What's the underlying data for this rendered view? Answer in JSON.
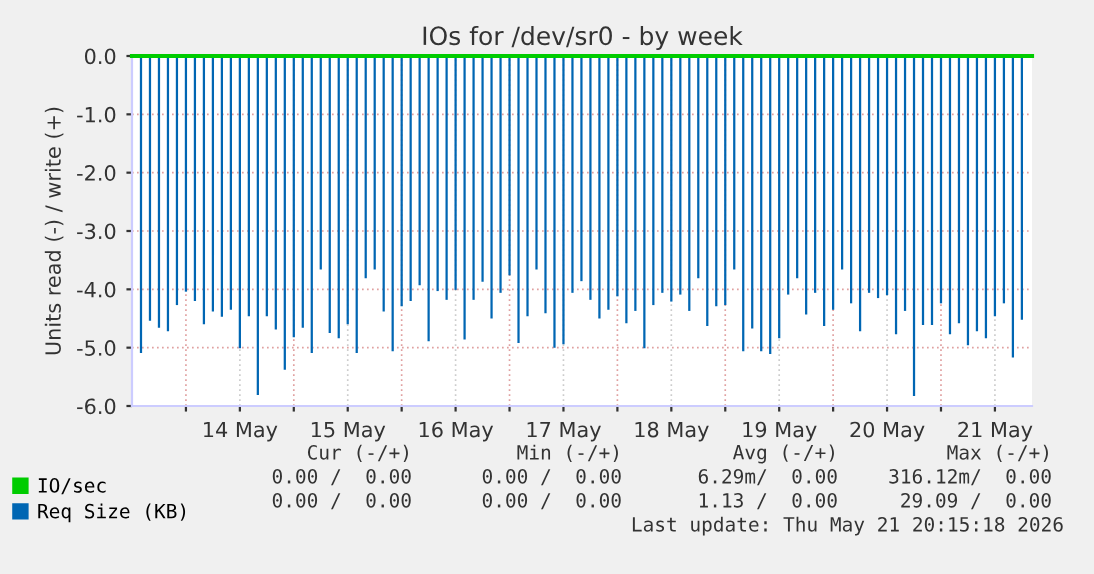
{
  "chart_data": {
    "type": "bar",
    "title": "IOs for /dev/sr0 - by week",
    "ylabel": "Units read (-) / write (+)",
    "series": [
      {
        "name": "IO/sec",
        "color": "#00cc00",
        "type": "line",
        "x": [
          "2026-05-13T12:00",
          "2026-05-21T20:15"
        ],
        "values": [
          0,
          0
        ]
      },
      {
        "name": "Req Size (KB)",
        "color": "#0066b3",
        "x": [
          "2026-05-13T14:00",
          "2026-05-13T16:00",
          "2026-05-13T18:00",
          "2026-05-13T20:00",
          "2026-05-13T22:00",
          "2026-05-14T00:00",
          "2026-05-14T02:00",
          "2026-05-14T04:00",
          "2026-05-14T06:00",
          "2026-05-14T08:00",
          "2026-05-14T10:00",
          "2026-05-14T12:00",
          "2026-05-14T14:00",
          "2026-05-14T16:00",
          "2026-05-14T18:00",
          "2026-05-14T20:00",
          "2026-05-14T22:00",
          "2026-05-15T00:00",
          "2026-05-15T02:00",
          "2026-05-15T04:00",
          "2026-05-15T06:00",
          "2026-05-15T08:00",
          "2026-05-15T10:00",
          "2026-05-15T12:00",
          "2026-05-15T14:00",
          "2026-05-15T16:00",
          "2026-05-15T18:00",
          "2026-05-15T20:00",
          "2026-05-15T22:00",
          "2026-05-16T00:00",
          "2026-05-16T02:00",
          "2026-05-16T04:00",
          "2026-05-16T06:00",
          "2026-05-16T08:00",
          "2026-05-16T10:00",
          "2026-05-16T12:00",
          "2026-05-16T14:00",
          "2026-05-16T16:00",
          "2026-05-16T18:00",
          "2026-05-16T20:00",
          "2026-05-16T22:00",
          "2026-05-17T00:00",
          "2026-05-17T02:00",
          "2026-05-17T04:00",
          "2026-05-17T06:00",
          "2026-05-17T08:00",
          "2026-05-17T10:00",
          "2026-05-17T12:00",
          "2026-05-17T14:00",
          "2026-05-17T16:00",
          "2026-05-17T18:00",
          "2026-05-17T20:00",
          "2026-05-17T22:00",
          "2026-05-18T00:00",
          "2026-05-18T02:00",
          "2026-05-18T04:00",
          "2026-05-18T06:00",
          "2026-05-18T08:00",
          "2026-05-18T10:00",
          "2026-05-18T12:00",
          "2026-05-18T14:00",
          "2026-05-18T16:00",
          "2026-05-18T18:00",
          "2026-05-18T20:00",
          "2026-05-18T22:00",
          "2026-05-19T00:00",
          "2026-05-19T02:00",
          "2026-05-19T04:00",
          "2026-05-19T06:00",
          "2026-05-19T08:00",
          "2026-05-19T10:00",
          "2026-05-19T12:00",
          "2026-05-19T14:00",
          "2026-05-19T16:00",
          "2026-05-19T18:00",
          "2026-05-19T20:00",
          "2026-05-19T22:00",
          "2026-05-20T00:00",
          "2026-05-20T02:00",
          "2026-05-20T04:00",
          "2026-05-20T06:00",
          "2026-05-20T08:00",
          "2026-05-20T10:00",
          "2026-05-20T12:00",
          "2026-05-20T14:00",
          "2026-05-20T16:00",
          "2026-05-20T18:00",
          "2026-05-20T20:00",
          "2026-05-20T22:00",
          "2026-05-21T00:00",
          "2026-05-21T02:00",
          "2026-05-21T04:00",
          "2026-05-21T06:00",
          "2026-05-21T08:00",
          "2026-05-21T10:00",
          "2026-05-21T12:00",
          "2026-05-21T14:00",
          "2026-05-21T16:00",
          "2026-05-21T18:00"
        ],
        "values": [
          -5.09,
          -4.54,
          -4.66,
          -4.72,
          -4.27,
          -4.04,
          -4.2,
          -4.6,
          -4.38,
          -4.47,
          -4.35,
          -5.01,
          -4.46,
          -5.81,
          -4.46,
          -4.69,
          -5.38,
          -4.82,
          -4.66,
          -5.09,
          -3.66,
          -4.75,
          -4.84,
          -4.6,
          -5.09,
          -3.81,
          -3.66,
          -4.38,
          -5.06,
          -4.29,
          -4.2,
          -3.93,
          -4.89,
          -4.03,
          -4.18,
          -4.01,
          -4.86,
          -4.18,
          -3.87,
          -4.5,
          -4.06,
          -3.76,
          -4.92,
          -4.46,
          -3.66,
          -4.41,
          -5.0,
          -4.94,
          -4.06,
          -3.86,
          -4.18,
          -4.5,
          -4.35,
          -4.12,
          -4.58,
          -4.37,
          -5.01,
          -4.27,
          -4.06,
          -4.21,
          -4.09,
          -4.37,
          -3.81,
          -4.63,
          -4.29,
          -4.27,
          -3.66,
          -5.06,
          -4.67,
          -5.06,
          -5.11,
          -4.84,
          -4.09,
          -3.81,
          -4.43,
          -4.06,
          -4.63,
          -4.35,
          -3.66,
          -4.24,
          -4.72,
          -4.06,
          -4.15,
          -4.1,
          -4.77,
          -4.37,
          -5.83,
          -4.61,
          -4.61,
          -4.24,
          -4.77,
          -4.58,
          -4.96,
          -4.72,
          -4.84,
          -4.46,
          -4.24,
          -5.17,
          -4.52
        ]
      }
    ],
    "xlim": [
      "2026-05-13T12:00",
      "2026-05-21T20:15"
    ],
    "xticks": [
      {
        "value": "2026-05-14T00:00",
        "label": null
      },
      {
        "value": "2026-05-14T12:00",
        "label": "14 May"
      },
      {
        "value": "2026-05-15T00:00",
        "label": null
      },
      {
        "value": "2026-05-15T12:00",
        "label": "15 May"
      },
      {
        "value": "2026-05-16T00:00",
        "label": null
      },
      {
        "value": "2026-05-16T12:00",
        "label": "16 May"
      },
      {
        "value": "2026-05-17T00:00",
        "label": null
      },
      {
        "value": "2026-05-17T12:00",
        "label": "17 May"
      },
      {
        "value": "2026-05-18T00:00",
        "label": null
      },
      {
        "value": "2026-05-18T12:00",
        "label": "18 May"
      },
      {
        "value": "2026-05-19T00:00",
        "label": null
      },
      {
        "value": "2026-05-19T12:00",
        "label": "19 May"
      },
      {
        "value": "2026-05-20T00:00",
        "label": null
      },
      {
        "value": "2026-05-20T12:00",
        "label": "20 May"
      },
      {
        "value": "2026-05-21T00:00",
        "label": null
      },
      {
        "value": "2026-05-21T12:00",
        "label": "21 May"
      }
    ],
    "ylim": [
      -6,
      0
    ],
    "yticks": [
      {
        "value": -6,
        "label": "-6.0"
      },
      {
        "value": -5,
        "label": "-5.0"
      },
      {
        "value": -4,
        "label": "-4.0"
      },
      {
        "value": -3,
        "label": "-3.0"
      },
      {
        "value": -2,
        "label": "-2.0"
      },
      {
        "value": -1,
        "label": "-1.0"
      },
      {
        "value": 0,
        "label": "0.0"
      }
    ],
    "grid": true,
    "legend": "bottom",
    "annotations": [
      "Cur (-/+)",
      "Min (-/+)",
      "Avg (-/+)",
      "Max (-/+)",
      "0.00 /  0.00",
      "0.00 /  0.00",
      "6.29m/  0.00",
      "316.12m/  0.00",
      "0.00 /  0.00",
      "0.00 /  0.00",
      "1.13 /  0.00",
      "29.09 /  0.00",
      "Last update: Thu May 21 20:15:18 2026"
    ]
  }
}
